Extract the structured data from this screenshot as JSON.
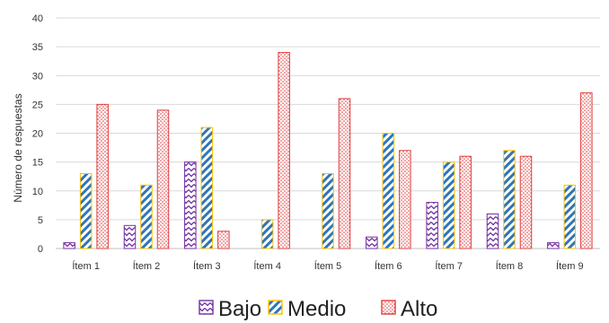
{
  "chart_data": {
    "type": "bar",
    "categories": [
      "Ítem 1",
      "Ítem 2",
      "Ítem 3",
      "Ítem 4",
      "Ítem 5",
      "Ítem 6",
      "Ítem 7",
      "Ítem 8",
      "Ítem 9"
    ],
    "series": [
      {
        "name": "Bajo",
        "values": [
          1,
          4,
          15,
          0,
          0,
          2,
          8,
          6,
          1
        ],
        "color": "#7030a0",
        "pattern": "zigzag"
      },
      {
        "name": "Medio",
        "values": [
          13,
          11,
          21,
          5,
          13,
          20,
          15,
          17,
          11
        ],
        "color": "#2e75b6",
        "border": "#ffc000",
        "pattern": "diagonal-stripes"
      },
      {
        "name": "Alto",
        "values": [
          25,
          24,
          3,
          34,
          26,
          17,
          16,
          16,
          27
        ],
        "color": "#e03c3c",
        "pattern": "dots"
      }
    ],
    "ylabel": "Número de respuestas",
    "xlabel": "",
    "ylim": [
      0,
      40
    ],
    "yticks": [
      0,
      5,
      10,
      15,
      20,
      25,
      30,
      35,
      40
    ],
    "grid": true,
    "legend": "bottom"
  }
}
